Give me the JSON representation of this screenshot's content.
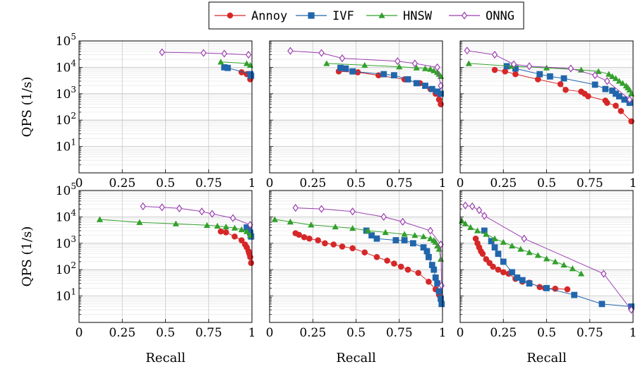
{
  "legend": {
    "entries": [
      {
        "name": "Annoy",
        "color": "#d62728",
        "marker": "circle"
      },
      {
        "name": "IVF",
        "color": "#2166ac",
        "marker": "square"
      },
      {
        "name": "HNSW",
        "color": "#33a02c",
        "marker": "triangle"
      },
      {
        "name": "ONNG",
        "color": "#9b3fb0",
        "marker": "diamond"
      }
    ]
  },
  "chart_data": [
    {
      "type": "line",
      "xlabel": "",
      "ylabel": "QPS (1/s)",
      "yscale": "log",
      "xlim": [
        0,
        1
      ],
      "ylim": [
        1,
        100000
      ],
      "xticks": [
        "0",
        "0.25",
        "0.5",
        "0.75",
        "1"
      ],
      "yticks": [
        "10^1",
        "10^2",
        "10^3",
        "10^4",
        "10^5"
      ],
      "series": [
        {
          "name": "Annoy",
          "x": [
            0.94,
            0.97,
            0.99
          ],
          "y": [
            6500,
            5500,
            3500
          ]
        },
        {
          "name": "IVF",
          "x": [
            0.84,
            0.86,
            0.99,
            0.995
          ],
          "y": [
            10000,
            9500,
            5500,
            4800
          ]
        },
        {
          "name": "HNSW",
          "x": [
            0.82,
            0.97,
            0.99
          ],
          "y": [
            16000,
            14000,
            12000
          ]
        },
        {
          "name": "ONNG",
          "x": [
            0.48,
            0.72,
            0.84,
            0.98
          ],
          "y": [
            37000,
            35000,
            33000,
            30000
          ]
        }
      ]
    },
    {
      "type": "line",
      "xlabel": "",
      "ylabel": "",
      "yscale": "log",
      "xlim": [
        0,
        1
      ],
      "ylim": [
        1,
        100000
      ],
      "xticks": [
        "0",
        "0.25",
        "0.5",
        "0.75",
        "1"
      ],
      "yticks": [],
      "series": [
        {
          "name": "Annoy",
          "x": [
            0.4,
            0.51,
            0.63,
            0.78,
            0.87,
            0.93,
            0.96,
            0.98,
            0.99
          ],
          "y": [
            7000,
            6500,
            5000,
            3500,
            2500,
            1500,
            1000,
            600,
            400
          ]
        },
        {
          "name": "IVF",
          "x": [
            0.41,
            0.44,
            0.48,
            0.66,
            0.72,
            0.8,
            0.85,
            0.9,
            0.94,
            0.97,
            0.99
          ],
          "y": [
            9500,
            9000,
            7000,
            5500,
            5000,
            3500,
            2500,
            2000,
            1500,
            1200,
            1000
          ]
        },
        {
          "name": "HNSW",
          "x": [
            0.33,
            0.55,
            0.75,
            0.85,
            0.9,
            0.93,
            0.95,
            0.97,
            0.98,
            0.99
          ],
          "y": [
            14000,
            12000,
            10500,
            9500,
            9000,
            8500,
            7500,
            6500,
            5500,
            4500
          ]
        },
        {
          "name": "ONNG",
          "x": [
            0.12,
            0.3,
            0.42,
            0.74,
            0.84,
            0.97,
            0.99
          ],
          "y": [
            42000,
            35000,
            22000,
            17000,
            14000,
            10000,
            2000
          ]
        }
      ]
    },
    {
      "type": "line",
      "xlabel": "",
      "ylabel": "",
      "yscale": "log",
      "xlim": [
        0,
        1
      ],
      "ylim": [
        1,
        100000
      ],
      "xticks": [
        "0",
        "0.25",
        "0.5",
        "0.75",
        "1"
      ],
      "yticks": [],
      "series": [
        {
          "name": "Annoy",
          "x": [
            0.2,
            0.26,
            0.32,
            0.45,
            0.58,
            0.61,
            0.7,
            0.72,
            0.74,
            0.84,
            0.85,
            0.9,
            0.93,
            0.99
          ],
          "y": [
            8000,
            7000,
            5500,
            3500,
            2300,
            1400,
            1200,
            1000,
            800,
            550,
            450,
            350,
            220,
            90
          ]
        },
        {
          "name": "IVF",
          "x": [
            0.27,
            0.32,
            0.46,
            0.52,
            0.6,
            0.78,
            0.84,
            0.88,
            0.9,
            0.92,
            0.95,
            0.98
          ],
          "y": [
            11000,
            9000,
            5500,
            4500,
            3800,
            2200,
            1500,
            1300,
            1000,
            800,
            600,
            450
          ]
        },
        {
          "name": "HNSW",
          "x": [
            0.05,
            0.3,
            0.5,
            0.7,
            0.8,
            0.86,
            0.88,
            0.9,
            0.92,
            0.94,
            0.96,
            0.97,
            0.98,
            0.99
          ],
          "y": [
            14000,
            11000,
            9500,
            8000,
            7000,
            5500,
            4500,
            3800,
            3000,
            2500,
            2000,
            1700,
            1400,
            1000
          ]
        },
        {
          "name": "ONNG",
          "x": [
            0.04,
            0.2,
            0.31,
            0.4,
            0.64,
            0.78,
            0.85,
            0.98
          ],
          "y": [
            43000,
            30000,
            13000,
            11000,
            9000,
            5000,
            3000,
            600
          ]
        }
      ]
    },
    {
      "type": "line",
      "xlabel": "Recall",
      "ylabel": "QPS (1/s)",
      "yscale": "log",
      "xlim": [
        0,
        1
      ],
      "ylim": [
        1,
        100000
      ],
      "xticks": [
        "0",
        "0.25",
        "0.5",
        "0.75",
        "1"
      ],
      "yticks": [
        "10^1",
        "10^2",
        "10^3",
        "10^4",
        "10^5"
      ],
      "series": [
        {
          "name": "Annoy",
          "x": [
            0.82,
            0.85,
            0.9,
            0.94,
            0.96,
            0.97,
            0.98,
            0.985,
            0.99,
            0.995
          ],
          "y": [
            2800,
            2600,
            1800,
            1300,
            900,
            700,
            500,
            400,
            300,
            180
          ]
        },
        {
          "name": "IVF",
          "x": [
            0.97,
            0.98,
            0.99,
            0.995
          ],
          "y": [
            4000,
            3500,
            2500,
            1800
          ]
        },
        {
          "name": "HNSW",
          "x": [
            0.12,
            0.35,
            0.56,
            0.74,
            0.8,
            0.85,
            0.9,
            0.94,
            0.97,
            0.99
          ],
          "y": [
            8000,
            6200,
            5500,
            4800,
            4500,
            4200,
            3800,
            3300,
            2800,
            2000
          ]
        },
        {
          "name": "ONNG",
          "x": [
            0.37,
            0.48,
            0.58,
            0.71,
            0.77,
            0.89,
            0.99
          ],
          "y": [
            25000,
            23000,
            21000,
            16000,
            13000,
            9000,
            5000
          ]
        }
      ]
    },
    {
      "type": "line",
      "xlabel": "Recall",
      "ylabel": "",
      "yscale": "log",
      "xlim": [
        0,
        1
      ],
      "ylim": [
        1,
        100000
      ],
      "xticks": [
        "0",
        "0.25",
        "0.5",
        "0.75",
        "1"
      ],
      "yticks": [],
      "series": [
        {
          "name": "Annoy",
          "x": [
            0.15,
            0.17,
            0.2,
            0.23,
            0.28,
            0.32,
            0.37,
            0.42,
            0.48,
            0.55,
            0.62,
            0.68,
            0.72,
            0.76,
            0.8,
            0.86,
            0.92,
            0.96,
            0.98
          ],
          "y": [
            2400,
            2100,
            1700,
            1500,
            1300,
            1000,
            900,
            750,
            650,
            450,
            300,
            220,
            170,
            130,
            100,
            75,
            35,
            18,
            11
          ]
        },
        {
          "name": "IVF",
          "x": [
            0.56,
            0.59,
            0.62,
            0.73,
            0.78,
            0.83,
            0.89,
            0.91,
            0.92,
            0.94,
            0.95,
            0.96,
            0.97,
            0.98,
            0.99,
            0.995
          ],
          "y": [
            3000,
            2000,
            1500,
            1300,
            1300,
            1000,
            700,
            500,
            300,
            150,
            100,
            50,
            30,
            15,
            8,
            5
          ]
        },
        {
          "name": "HNSW",
          "x": [
            0.03,
            0.12,
            0.24,
            0.38,
            0.48,
            0.57,
            0.67,
            0.78,
            0.84,
            0.89,
            0.93,
            0.95,
            0.96,
            0.97,
            0.98,
            0.99
          ],
          "y": [
            8000,
            6500,
            5000,
            4200,
            3700,
            3000,
            2600,
            2200,
            2000,
            1800,
            1500,
            1300,
            1100,
            800,
            600,
            250
          ]
        },
        {
          "name": "ONNG",
          "x": [
            0.15,
            0.3,
            0.48,
            0.66,
            0.77,
            0.93,
            0.99,
            0.995
          ],
          "y": [
            22000,
            20000,
            16000,
            10000,
            6500,
            3000,
            900,
            25
          ]
        }
      ]
    },
    {
      "type": "line",
      "xlabel": "Recall",
      "ylabel": "",
      "yscale": "log",
      "xlim": [
        0,
        1
      ],
      "ylim": [
        1,
        100000
      ],
      "xticks": [
        "0",
        "0.25",
        "0.5",
        "0.75",
        "1"
      ],
      "yticks": [],
      "series": [
        {
          "name": "Annoy",
          "x": [
            0.09,
            0.1,
            0.11,
            0.12,
            0.13,
            0.15,
            0.17,
            0.19,
            0.22,
            0.25,
            0.28,
            0.32,
            0.36,
            0.4,
            0.46,
            0.49,
            0.55,
            0.62
          ],
          "y": [
            1500,
            1000,
            700,
            500,
            400,
            250,
            180,
            130,
            100,
            80,
            70,
            45,
            35,
            32,
            22,
            20,
            19,
            18
          ]
        },
        {
          "name": "IVF",
          "x": [
            0.14,
            0.18,
            0.2,
            0.22,
            0.25,
            0.3,
            0.33,
            0.36,
            0.4,
            0.5,
            0.66,
            0.82,
            0.99
          ],
          "y": [
            3000,
            1200,
            700,
            400,
            200,
            80,
            50,
            40,
            30,
            20,
            11,
            5,
            4
          ]
        },
        {
          "name": "HNSW",
          "x": [
            0.01,
            0.03,
            0.06,
            0.1,
            0.15,
            0.2,
            0.25,
            0.3,
            0.35,
            0.4,
            0.45,
            0.5,
            0.55,
            0.6,
            0.65,
            0.7
          ],
          "y": [
            7000,
            5500,
            4000,
            3000,
            2200,
            1500,
            1100,
            800,
            600,
            450,
            350,
            260,
            200,
            150,
            110,
            70
          ]
        },
        {
          "name": "ONNG",
          "x": [
            0.03,
            0.07,
            0.11,
            0.14,
            0.37,
            0.83,
            0.99
          ],
          "y": [
            27000,
            25000,
            18000,
            11000,
            1500,
            70,
            3
          ]
        }
      ]
    }
  ]
}
